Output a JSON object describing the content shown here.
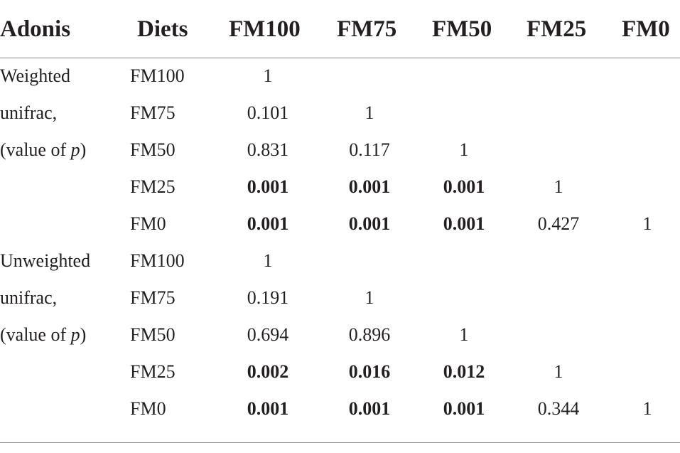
{
  "header": {
    "adonis": "Adonis",
    "diets": "Diets",
    "fm100": "FM100",
    "fm75": "FM75",
    "fm50": "FM50",
    "fm25": "FM25",
    "fm0": "FM0"
  },
  "groups": [
    {
      "label_line1": "Weighted",
      "label_line2": "unifrac,",
      "label_line3_prefix": "(value of ",
      "label_line3_var": "p",
      "label_line3_suffix": ")",
      "rows": [
        {
          "diet": "FM100",
          "cells": [
            "1"
          ]
        },
        {
          "diet": "FM75",
          "cells": [
            "0.101",
            "1"
          ]
        },
        {
          "diet": "FM50",
          "cells": [
            "0.831",
            "0.117",
            "1"
          ]
        },
        {
          "diet": "FM25",
          "cells": [
            "0.001",
            "0.001",
            "0.001",
            "1"
          ]
        },
        {
          "diet": "FM0",
          "cells": [
            "0.001",
            "0.001",
            "0.001",
            "0.427",
            "1"
          ]
        }
      ]
    },
    {
      "label_line1": "Unweighted",
      "label_line2": "unifrac,",
      "label_line3_prefix": "(value of ",
      "label_line3_var": "p",
      "label_line3_suffix": ")",
      "rows": [
        {
          "diet": "FM100",
          "cells": [
            "1"
          ]
        },
        {
          "diet": "FM75",
          "cells": [
            "0.191",
            "1"
          ]
        },
        {
          "diet": "FM50",
          "cells": [
            "0.694",
            "0.896",
            "1"
          ]
        },
        {
          "diet": "FM25",
          "cells": [
            "0.002",
            "0.016",
            "0.012",
            "1"
          ]
        },
        {
          "diet": "FM0",
          "cells": [
            "0.001",
            "0.001",
            "0.001",
            "0.344",
            "1"
          ]
        }
      ]
    }
  ],
  "bold_cells": [
    [
      false,
      false,
      false,
      false,
      false
    ],
    [
      false,
      false,
      false,
      false,
      false
    ],
    [
      false,
      false,
      false,
      false,
      false
    ],
    [
      true,
      true,
      true,
      false,
      false
    ],
    [
      true,
      true,
      true,
      false,
      false
    ]
  ]
}
